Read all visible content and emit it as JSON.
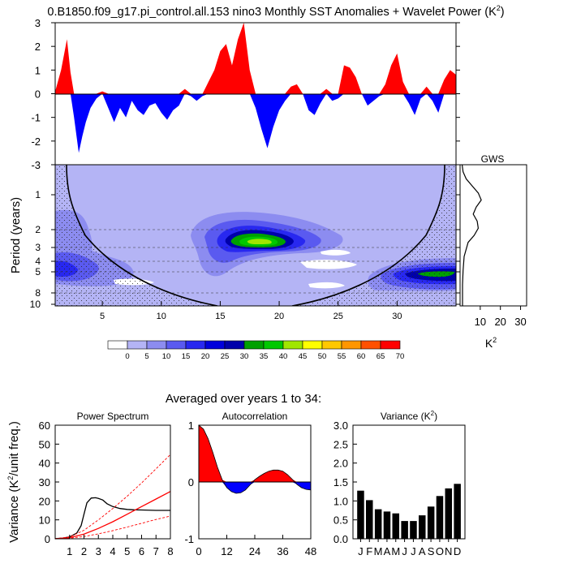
{
  "chart_data": [
    {
      "id": "sst_anomalies",
      "type": "area",
      "title": "0.B1850.f09_g17.pi_control.all.153 nino3 Monthly SST Anomalies + Wavelet Power (K",
      "title_sup": "2",
      "title_end": ")",
      "ylim": [
        -3,
        3
      ],
      "yticks": [
        -3,
        -2,
        -1,
        0,
        1,
        2,
        3
      ],
      "xlim": [
        1,
        35
      ],
      "positive_color": "#ff0000",
      "negative_color": "#0000ff",
      "series_x": [
        1.0,
        1.5,
        2.0,
        2.3,
        2.6,
        3.0,
        3.3,
        3.6,
        4.0,
        4.5,
        5.0,
        5.5,
        6.0,
        6.5,
        7.0,
        7.5,
        8.0,
        8.5,
        9.0,
        9.5,
        10.0,
        10.5,
        11.0,
        11.5,
        12.0,
        12.5,
        13.0,
        13.5,
        14.0,
        14.5,
        15.0,
        15.5,
        16.0,
        16.5,
        17.0,
        17.5,
        18.0,
        18.5,
        19.0,
        19.5,
        20.0,
        20.5,
        21.0,
        21.5,
        22.0,
        22.5,
        23.0,
        23.5,
        24.0,
        24.5,
        25.0,
        25.5,
        26.0,
        26.5,
        27.0,
        27.5,
        28.0,
        28.5,
        29.0,
        29.5,
        30.0,
        30.5,
        31.0,
        31.5,
        32.0,
        32.5,
        33.0,
        33.5,
        34.0,
        34.5,
        35.0
      ],
      "series_y": [
        0.1,
        1.0,
        2.3,
        0.9,
        -1.0,
        -2.5,
        -1.8,
        -1.2,
        -0.6,
        -0.2,
        0.1,
        -0.6,
        -1.2,
        -0.6,
        -1.0,
        -0.3,
        -0.7,
        -0.9,
        -0.5,
        -0.4,
        -0.8,
        -1.1,
        -0.7,
        -0.5,
        0.2,
        -0.1,
        -0.3,
        -0.1,
        0.5,
        1.0,
        1.8,
        2.1,
        1.2,
        2.3,
        3.0,
        1.0,
        -0.6,
        -1.5,
        -2.3,
        -1.4,
        -0.7,
        -0.3,
        0.3,
        0.4,
        0.0,
        -0.7,
        -0.9,
        -0.4,
        0.2,
        -0.3,
        -0.2,
        1.2,
        1.1,
        0.7,
        0.0,
        -0.5,
        -0.3,
        -0.1,
        0.4,
        1.2,
        1.7,
        0.5,
        -0.4,
        -0.9,
        -0.2,
        0.3,
        -0.3,
        -0.8,
        0.6,
        1.0,
        0.8
      ]
    },
    {
      "id": "wavelet_power",
      "type": "heatmap",
      "ylabel": "Period (years)",
      "yticks": [
        1,
        2,
        3,
        4,
        5,
        8,
        10
      ],
      "xticks": [
        5,
        10,
        15,
        20,
        25,
        30
      ],
      "xlim": [
        1,
        35
      ],
      "ylim": [
        0.5,
        10.5
      ],
      "colorbar_levels": [
        0,
        5,
        10,
        15,
        20,
        25,
        30,
        35,
        40,
        45,
        50,
        55,
        60,
        65,
        70
      ],
      "colorbar_colors": [
        "#ffffff",
        "#b4b4f5",
        "#8c8cf0",
        "#5a5af0",
        "#2828f0",
        "#0000dc",
        "#0000aa",
        "#00a000",
        "#00c800",
        "#a0e600",
        "#ffff00",
        "#ffc800",
        "#ff9600",
        "#ff5000",
        "#ff0000"
      ],
      "peaks": [
        {
          "x": 18.3,
          "period": 3.0,
          "value": 48
        },
        {
          "x": 1.5,
          "period": 5.0,
          "value": 24
        },
        {
          "x": 33.5,
          "period": 5.0,
          "value": 32
        }
      ]
    },
    {
      "id": "global_wavelet_spectrum",
      "type": "line",
      "title": "GWS",
      "xlabel": "K",
      "xlabel_sup": "2",
      "xticks": [
        10,
        20,
        30
      ],
      "xlim": [
        0,
        33
      ],
      "periods": [
        0.5,
        1.0,
        1.5,
        2.0,
        2.5,
        3.0,
        3.5,
        4.0,
        4.5,
        5.0,
        5.5,
        6.0,
        7.0,
        8.0,
        9.0,
        10.0,
        10.5
      ],
      "values": [
        1.0,
        1.5,
        3.0,
        6.0,
        9.0,
        10.5,
        8.0,
        6.5,
        8.5,
        9.0,
        7.0,
        4.0,
        2.0,
        1.5,
        1.2,
        1.2,
        1.2
      ]
    },
    {
      "id": "averaged_title",
      "type": "table",
      "title": "Averaged over years 1 to 34:"
    },
    {
      "id": "power_spectrum",
      "type": "line",
      "title": "Power Spectrum",
      "ylabel": "Variance (K",
      "ylabel_sup": "2",
      "ylabel_end": "/unit freq.)",
      "ylim": [
        0,
        60
      ],
      "xlim": [
        0,
        8
      ],
      "yticks": [
        0,
        10,
        20,
        30,
        40,
        50,
        60
      ],
      "xticks": [
        1,
        2,
        3,
        4,
        5,
        6,
        7,
        8
      ],
      "series": [
        {
          "name": "spectrum",
          "color": "#000000",
          "style": "solid",
          "x": [
            0.0,
            0.5,
            1.0,
            1.5,
            1.8,
            2.0,
            2.2,
            2.5,
            2.8,
            3.0,
            3.3,
            3.6,
            4.0,
            4.5,
            5.0,
            5.5,
            6.0,
            7.0,
            8.0
          ],
          "y": [
            0.1,
            0.3,
            1.0,
            3.0,
            7.0,
            13.0,
            19.0,
            21.5,
            21.7,
            21.3,
            20.5,
            18.5,
            17.0,
            16.0,
            15.5,
            15.3,
            15.2,
            15.0,
            15.0
          ]
        },
        {
          "name": "red noise",
          "color": "#ff0000",
          "style": "solid",
          "x": [
            0,
            1,
            2,
            3,
            4,
            5,
            6,
            7,
            8
          ],
          "y": [
            0,
            0.6,
            2.5,
            5.5,
            9.0,
            13.0,
            17.0,
            21.0,
            25.0
          ]
        },
        {
          "name": "upper bound",
          "color": "#ff0000",
          "style": "dashed",
          "x": [
            0,
            1,
            2,
            3,
            4,
            5,
            6,
            7,
            8
          ],
          "y": [
            0,
            1.0,
            4.5,
            10.0,
            16.0,
            22.5,
            29.5,
            37.0,
            44.5
          ]
        },
        {
          "name": "lower bound",
          "color": "#ff0000",
          "style": "dashed",
          "x": [
            0,
            1,
            2,
            3,
            4,
            5,
            6,
            7,
            8
          ],
          "y": [
            0,
            0.3,
            1.2,
            2.6,
            4.3,
            6.2,
            8.2,
            10.2,
            12.0
          ]
        }
      ]
    },
    {
      "id": "autocorrelation",
      "type": "area",
      "title": "Autocorrelation",
      "ylim": [
        -1,
        1
      ],
      "xlim": [
        0,
        48
      ],
      "yticks": [
        -1,
        0,
        1
      ],
      "xticks": [
        0,
        12,
        24,
        36,
        48
      ],
      "positive_color": "#ff0000",
      "negative_color": "#0000ff",
      "lags": [
        0,
        2,
        4,
        6,
        8,
        10,
        12,
        14,
        16,
        18,
        20,
        22,
        24,
        26,
        28,
        30,
        32,
        34,
        36,
        38,
        40,
        42,
        44,
        46,
        48
      ],
      "values": [
        1.0,
        0.93,
        0.76,
        0.52,
        0.26,
        0.04,
        -0.1,
        -0.17,
        -0.2,
        -0.19,
        -0.14,
        -0.05,
        0.04,
        0.1,
        0.15,
        0.19,
        0.21,
        0.21,
        0.19,
        0.13,
        0.05,
        -0.04,
        -0.1,
        -0.13,
        -0.14
      ]
    },
    {
      "id": "monthly_variance",
      "type": "bar",
      "title": "Variance (K",
      "title_sup": "2",
      "title_end": ")",
      "ylim": [
        0,
        3.0
      ],
      "yticks": [
        "0.0",
        "0.5",
        "1.0",
        "1.5",
        "2.0",
        "2.5",
        "3.0"
      ],
      "categories": [
        "J",
        "F",
        "M",
        "A",
        "M",
        "J",
        "J",
        "A",
        "S",
        "O",
        "N",
        "D"
      ],
      "values": [
        1.27,
        1.02,
        0.78,
        0.72,
        0.67,
        0.47,
        0.47,
        0.62,
        0.85,
        1.13,
        1.33,
        1.45
      ],
      "bar_color": "#000000"
    }
  ]
}
